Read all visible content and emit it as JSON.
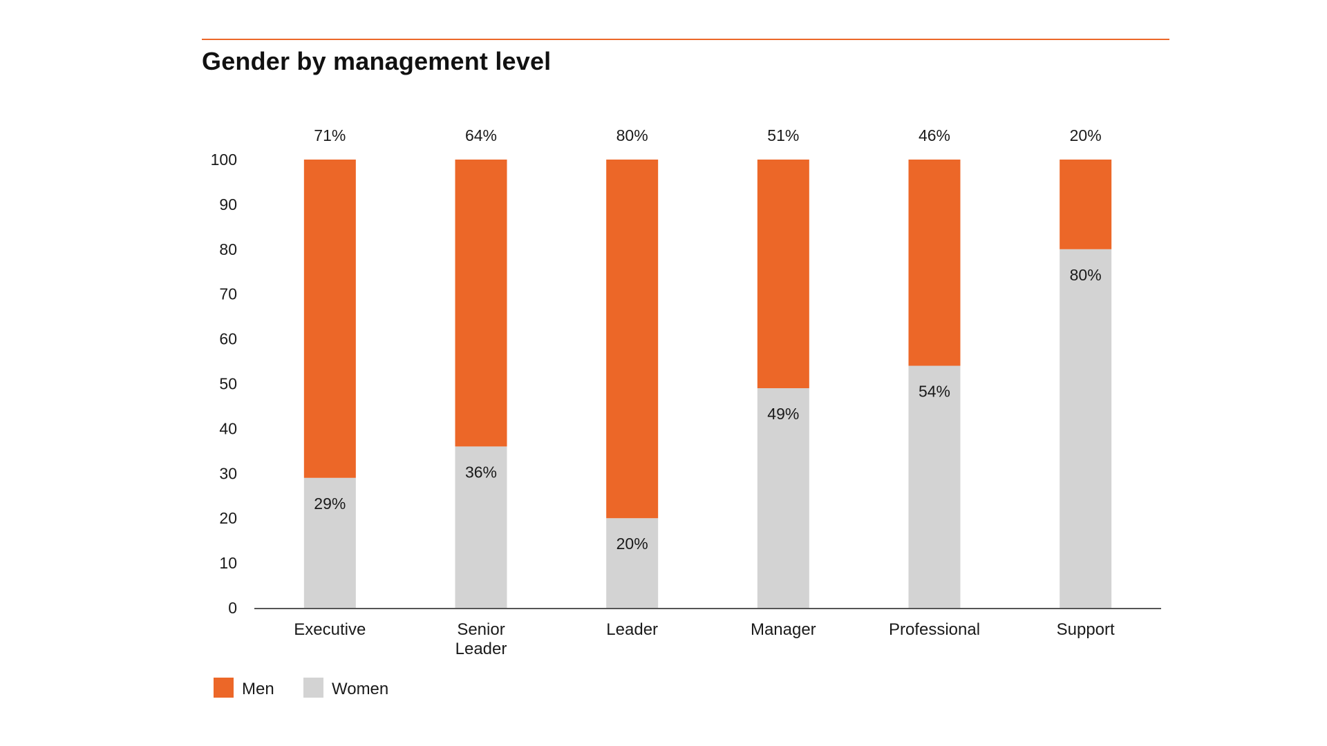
{
  "title": "Gender by management level",
  "colors": {
    "accent_rule": "#ec6728",
    "men": "#ec6728",
    "women": "#d3d3d3",
    "axis": "#555555"
  },
  "chart_data": {
    "type": "bar",
    "stacked": true,
    "title": "Gender by management level",
    "categories": [
      [
        "Executive"
      ],
      [
        "Senior",
        "Leader"
      ],
      [
        "Leader"
      ],
      [
        "Manager"
      ],
      [
        "Professional"
      ],
      [
        "Support"
      ]
    ],
    "series": [
      {
        "name": "Women",
        "color": "#d3d3d3",
        "values": [
          29,
          36,
          20,
          49,
          54,
          80
        ],
        "labels": [
          "29%",
          "36%",
          "20%",
          "49%",
          "54%",
          "80%"
        ]
      },
      {
        "name": "Men",
        "color": "#ec6728",
        "values": [
          71,
          64,
          80,
          51,
          46,
          20
        ],
        "labels": [
          "71%",
          "64%",
          "80%",
          "51%",
          "46%",
          "20%"
        ]
      }
    ],
    "ylim": [
      0,
      100
    ],
    "yticks": [
      0,
      10,
      20,
      30,
      40,
      50,
      60,
      70,
      80,
      90,
      100
    ],
    "xlabel": "",
    "ylabel": "",
    "grid": false,
    "legend": {
      "position": "bottom-left",
      "items": [
        {
          "label": "Men",
          "color": "#ec6728"
        },
        {
          "label": "Women",
          "color": "#d3d3d3"
        }
      ]
    }
  }
}
